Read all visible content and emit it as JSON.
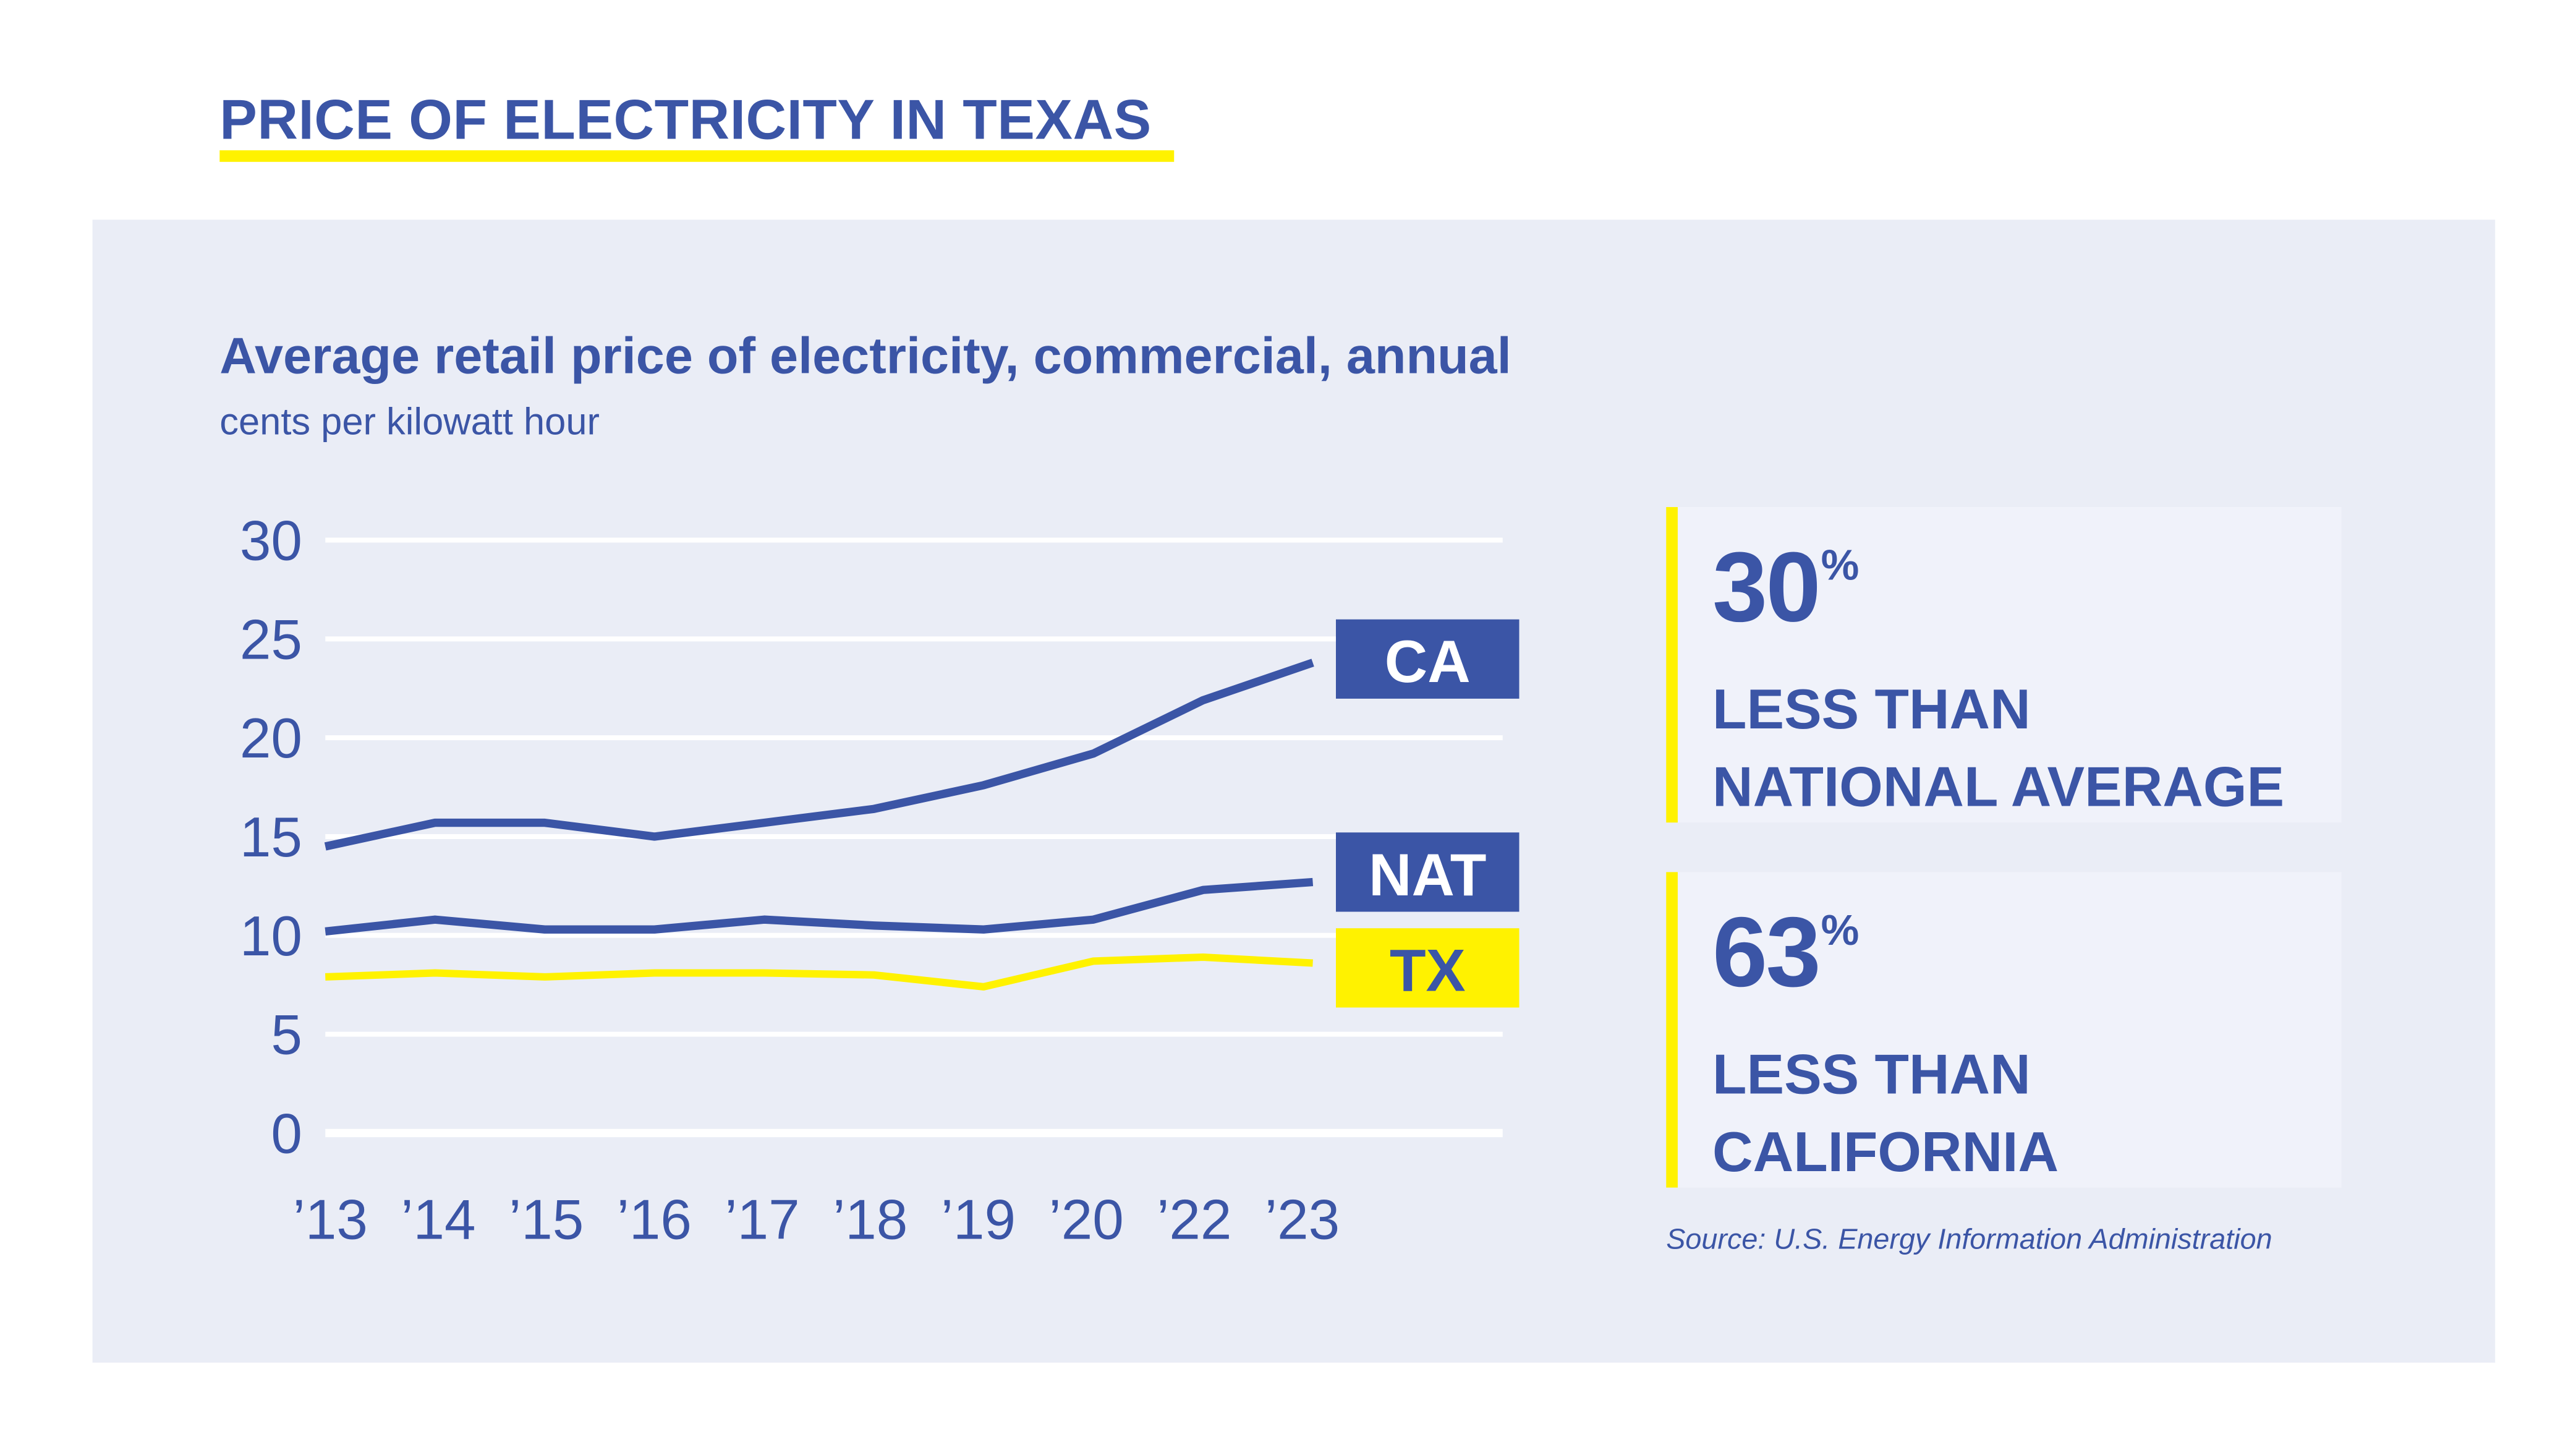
{
  "header": {
    "title": "PRICE OF ELECTRICITY IN TEXAS"
  },
  "colors": {
    "blue": "#3b55a6",
    "yellow": "#fff200",
    "panel": "#eaedf6",
    "card": "#f0f2fa"
  },
  "chart_data": {
    "type": "line",
    "title": "Average retail price of electricity, commercial, annual",
    "subtitle": "cents per kilowatt hour",
    "categories": [
      "’13",
      "’14",
      "’15",
      "’16",
      "’17",
      "’18",
      "’19",
      "’20",
      "’22",
      "’23"
    ],
    "ylim": [
      0,
      30
    ],
    "yticks": [
      "0",
      "5",
      "10",
      "15",
      "20",
      "25",
      "30"
    ],
    "grid": true,
    "legend": "end-of-line labels",
    "series": [
      {
        "name": "CA",
        "color": "#3b55a6",
        "label_text_color": "#ffffff",
        "values": [
          14.5,
          15.7,
          15.7,
          15.0,
          15.7,
          16.4,
          17.6,
          19.2,
          21.9,
          23.8
        ]
      },
      {
        "name": "NAT",
        "color": "#3b55a6",
        "label_text_color": "#ffffff",
        "values": [
          10.2,
          10.8,
          10.3,
          10.3,
          10.8,
          10.5,
          10.3,
          10.8,
          12.3,
          12.7
        ]
      },
      {
        "name": "TX",
        "color": "#fff200",
        "label_text_color": "#3b55a6",
        "values": [
          7.9,
          8.1,
          7.9,
          8.1,
          8.1,
          8.0,
          7.4,
          8.7,
          8.9,
          8.6
        ]
      }
    ]
  },
  "stats": [
    {
      "value": "30",
      "unit": "%",
      "label": "LESS THAN\nNATIONAL AVERAGE"
    },
    {
      "value": "63",
      "unit": "%",
      "label": "LESS THAN\nCALIFORNIA"
    }
  ],
  "source": "Source: U.S. Energy Information Administration"
}
